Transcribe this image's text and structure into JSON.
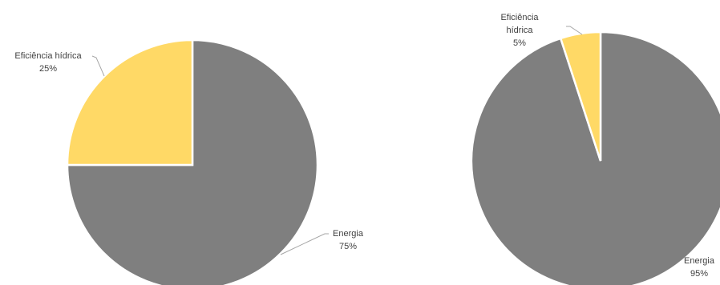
{
  "chart_data": [
    {
      "type": "pie",
      "title": "",
      "slices": [
        {
          "label": "Energia",
          "value": 75,
          "value_label": "75%",
          "color": "#7f7f7f"
        },
        {
          "label": "Eficiência hídrica",
          "value": 25,
          "value_label": "25%",
          "color": "#ffd966"
        }
      ]
    },
    {
      "type": "pie",
      "title": "",
      "slices": [
        {
          "label": "Energia",
          "value": 95,
          "value_label": "95%",
          "color": "#7f7f7f"
        },
        {
          "label": "Eficiência hídrica",
          "value": 5,
          "value_label": "5%",
          "color": "#ffd966"
        }
      ]
    }
  ]
}
